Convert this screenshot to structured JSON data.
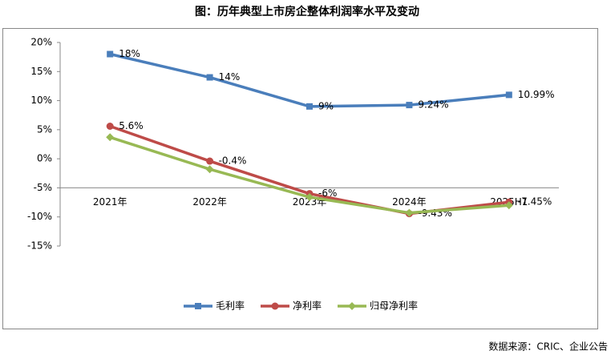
{
  "chart_data": {
    "type": "line",
    "title": "图：历年典型上市房企整体利润率水平及变动",
    "source": "数据来源：CRIC、企业公告",
    "categories": [
      "2021年",
      "2022年",
      "2023年",
      "2024年",
      "2025H1"
    ],
    "series": [
      {
        "name": "毛利率",
        "color": "#4a7ebb",
        "marker": "square",
        "values": [
          18,
          14,
          9,
          9.24,
          10.99
        ],
        "value_labels": [
          "18%",
          "14%",
          "9%",
          "9.24%",
          "10.99%"
        ]
      },
      {
        "name": "净利率",
        "color": "#be4b48",
        "marker": "circle",
        "values": [
          5.6,
          -0.4,
          -6,
          -9.43,
          -7.45
        ],
        "value_labels": [
          "5.6%",
          "-0.4%",
          "-6%",
          "-9.43%",
          "-7.45%"
        ]
      },
      {
        "name": "归母净利率",
        "color": "#98b954",
        "marker": "diamond",
        "values": [
          3.7,
          -1.8,
          -6.6,
          -9.3,
          -8.0
        ]
      }
    ],
    "ylim": [
      -15,
      20
    ],
    "yticks": [
      {
        "value": -15,
        "label": "-15%"
      },
      {
        "value": -10,
        "label": "-10%"
      },
      {
        "value": -5,
        "label": "-5%"
      },
      {
        "value": 0,
        "label": "0%"
      },
      {
        "value": 5,
        "label": "5%"
      },
      {
        "value": 10,
        "label": "10%"
      },
      {
        "value": 15,
        "label": "15%"
      },
      {
        "value": 20,
        "label": "20%"
      }
    ],
    "x_axis_crosses": -5,
    "legend": "bottom"
  }
}
